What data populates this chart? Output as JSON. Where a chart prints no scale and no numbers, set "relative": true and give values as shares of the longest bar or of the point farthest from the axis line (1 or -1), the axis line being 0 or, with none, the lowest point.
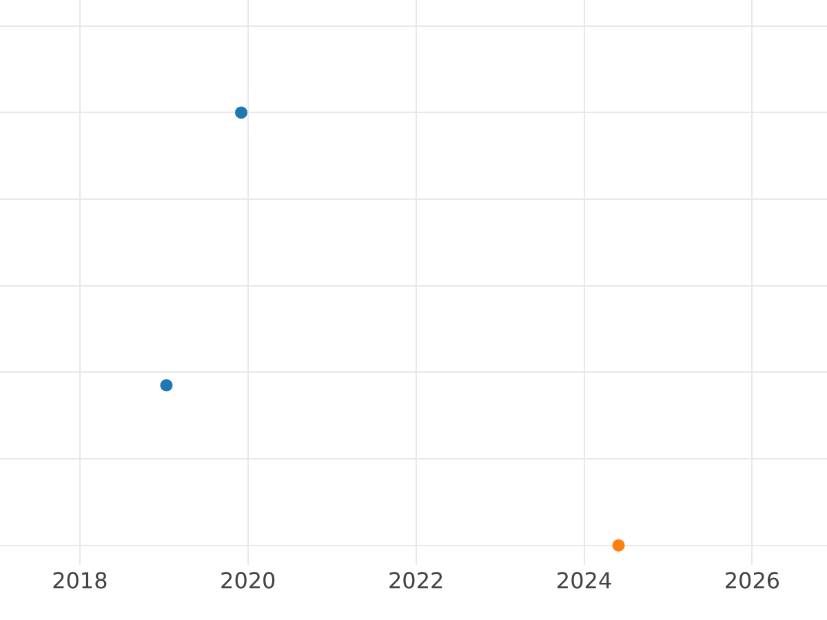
{
  "chart_data": {
    "type": "scatter",
    "relative": true,
    "xlim": [
      2017.05,
      2026.89
    ],
    "xticks": [
      2018,
      2020,
      2022,
      2024,
      2026
    ],
    "grid": true,
    "marker": "circle",
    "series": [
      {
        "color": "#1f77b4",
        "x": [
          2019.92,
          2019.03
        ],
        "values": [
          1,
          0.37
        ]
      },
      {
        "color": "#ff7f0e",
        "x": [
          2024.41
        ],
        "values": [
          0
        ]
      }
    ]
  }
}
